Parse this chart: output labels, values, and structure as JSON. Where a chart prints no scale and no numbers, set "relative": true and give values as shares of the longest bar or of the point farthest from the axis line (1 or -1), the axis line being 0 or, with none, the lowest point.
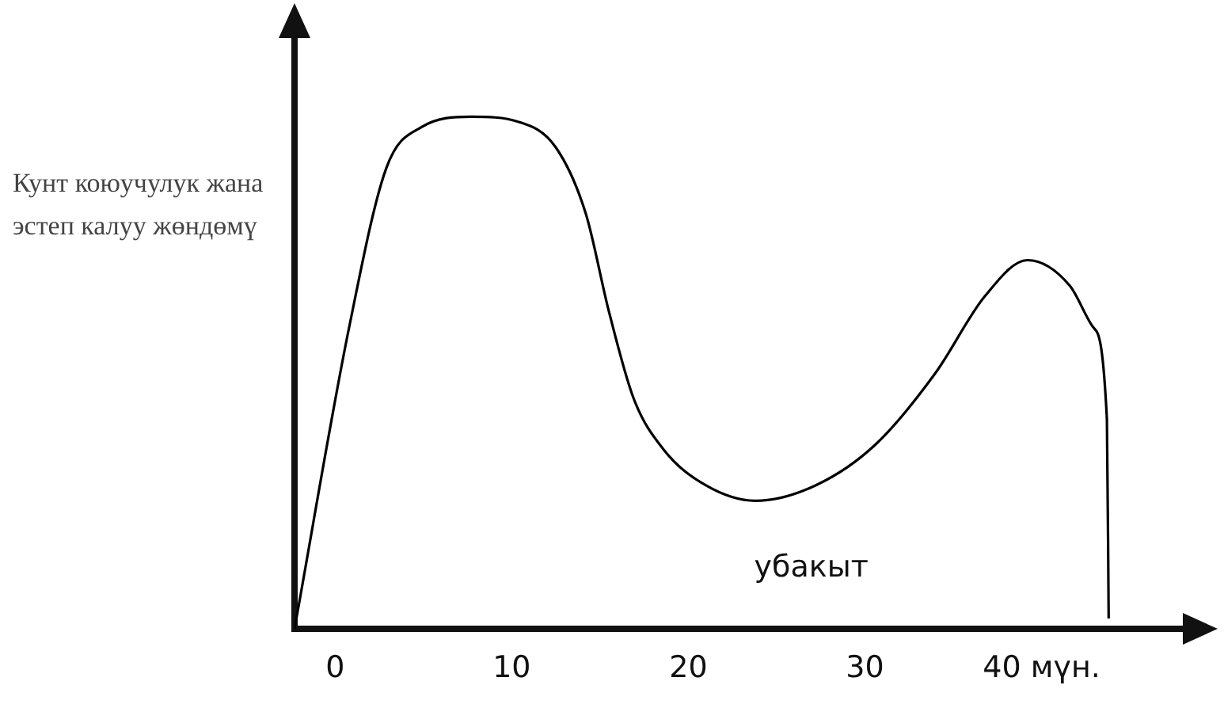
{
  "chart_data": {
    "type": "line",
    "relative": true,
    "ylabel": "Кунт  коюучулук жана эстеп калуу жөндөмү",
    "xlabel": "убакыт",
    "xlim": [
      -2.3,
      48
    ],
    "xticks": [
      0,
      10,
      20,
      30,
      {
        "value": 40,
        "label": "40 мүн."
      }
    ],
    "x": [
      -2.3,
      0.8,
      2.9,
      4.9,
      7.7,
      10.4,
      12.5,
      14.2,
      15.5,
      16.9,
      18.6,
      21.0,
      23.8,
      27.2,
      30.6,
      34.0,
      36.8,
      39.2,
      41.6,
      42.9,
      43.7,
      43.8
    ],
    "series": [
      {
        "color": "#000000",
        "values": [
          0,
          0.59,
          0.9,
          0.98,
          1.0,
          0.99,
          0.94,
          0.81,
          0.62,
          0.45,
          0.35,
          0.28,
          0.25,
          0.28,
          0.36,
          0.5,
          0.65,
          0.72,
          0.67,
          0.59,
          0.41,
          0.02
        ]
      }
    ],
    "grid": false,
    "legend": false,
    "marker": "none",
    "line_style": "solid"
  }
}
